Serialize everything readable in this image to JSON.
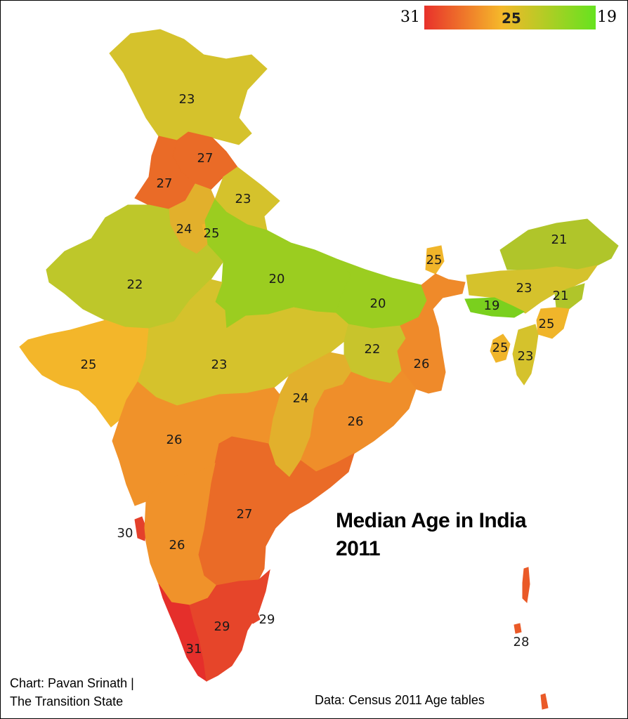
{
  "title": {
    "line1": "Median Age in India",
    "line2": "2011"
  },
  "credit": {
    "line1": "Chart: Pavan Srinath |",
    "line2": "The Transition State"
  },
  "source": "Data: Census 2011 Age tables",
  "legend": {
    "max_label": "31",
    "mid_label": "25",
    "min_label": "19",
    "colors": {
      "high": "#e8312b",
      "mid": "#f5b82a",
      "low": "#66e31f"
    }
  },
  "regions": [
    {
      "name": "jammu-kashmir",
      "value": "23",
      "color": "#d5c22c"
    },
    {
      "name": "himachal-pradesh",
      "value": "27",
      "color": "#ea6b27"
    },
    {
      "name": "punjab",
      "value": "27",
      "color": "#ea6b27"
    },
    {
      "name": "uttarakhand",
      "value": "23",
      "color": "#d5c22c"
    },
    {
      "name": "haryana",
      "value": "24",
      "color": "#e2b02c"
    },
    {
      "name": "delhi",
      "value": "25",
      "color": "#f0b52a"
    },
    {
      "name": "rajasthan",
      "value": "22",
      "color": "#bec72a"
    },
    {
      "name": "uttar-pradesh",
      "value": "20",
      "color": "#9bcd20"
    },
    {
      "name": "bihar",
      "value": "20",
      "color": "#9bcd20"
    },
    {
      "name": "sikkim",
      "value": "25",
      "color": "#f0b52a"
    },
    {
      "name": "arunachal-pradesh",
      "value": "21",
      "color": "#b0c52a"
    },
    {
      "name": "assam",
      "value": "23",
      "color": "#d5c22c"
    },
    {
      "name": "nagaland",
      "value": "21",
      "color": "#b0c52a"
    },
    {
      "name": "meghalaya",
      "value": "19",
      "color": "#7ad01e"
    },
    {
      "name": "manipur",
      "value": "25",
      "color": "#f0b52a"
    },
    {
      "name": "tripura",
      "value": "25",
      "color": "#f0b52a"
    },
    {
      "name": "mizoram",
      "value": "23",
      "color": "#d5c22c"
    },
    {
      "name": "gujarat",
      "value": "25",
      "color": "#f3b62a"
    },
    {
      "name": "madhya-pradesh",
      "value": "23",
      "color": "#d5c22c"
    },
    {
      "name": "jharkhand",
      "value": "22",
      "color": "#c8c42c"
    },
    {
      "name": "west-bengal",
      "value": "26",
      "color": "#ef8a2a"
    },
    {
      "name": "chhattisgarh",
      "value": "24",
      "color": "#e2b02c"
    },
    {
      "name": "odisha",
      "value": "26",
      "color": "#ef8e2a"
    },
    {
      "name": "maharashtra",
      "value": "26",
      "color": "#f0922a"
    },
    {
      "name": "andhra-pradesh",
      "value": "27",
      "color": "#ea6b27"
    },
    {
      "name": "goa",
      "value": "30",
      "color": "#e4402b"
    },
    {
      "name": "karnataka",
      "value": "26",
      "color": "#f0922a"
    },
    {
      "name": "kerala",
      "value": "31",
      "color": "#e52f2b"
    },
    {
      "name": "tamil-nadu",
      "value": "29",
      "color": "#e6452a"
    },
    {
      "name": "puducherry",
      "value": "29",
      "color": "#e6452a"
    },
    {
      "name": "andaman-nicobar",
      "value": "28",
      "color": "#ea5a28"
    }
  ]
}
